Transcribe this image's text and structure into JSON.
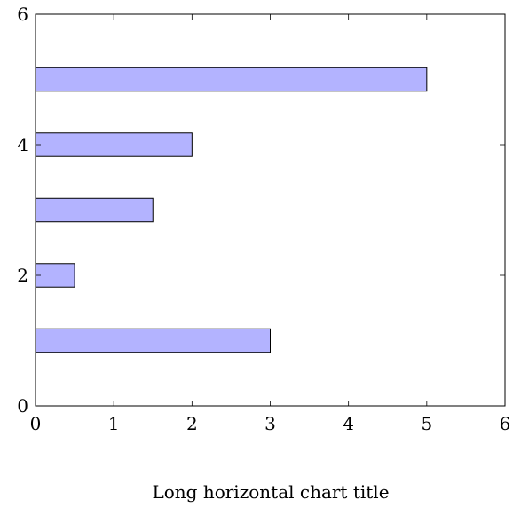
{
  "chart_data": {
    "type": "bar",
    "orientation": "horizontal",
    "title": "",
    "xlabel": "Long horizontal chart title",
    "ylabel": "",
    "xlim": [
      0,
      6
    ],
    "ylim": [
      0,
      6
    ],
    "x_ticks": [
      0,
      1,
      2,
      3,
      4,
      5,
      6
    ],
    "y_ticks": [
      0,
      2,
      4,
      6
    ],
    "grid": false,
    "bar_color": "#b3b3ff",
    "bar_edge_color": "#000000",
    "bars": [
      {
        "y": 1,
        "value": 3
      },
      {
        "y": 2,
        "value": 0.5
      },
      {
        "y": 3,
        "value": 1.5
      },
      {
        "y": 4,
        "value": 2
      },
      {
        "y": 5,
        "value": 5
      }
    ]
  }
}
